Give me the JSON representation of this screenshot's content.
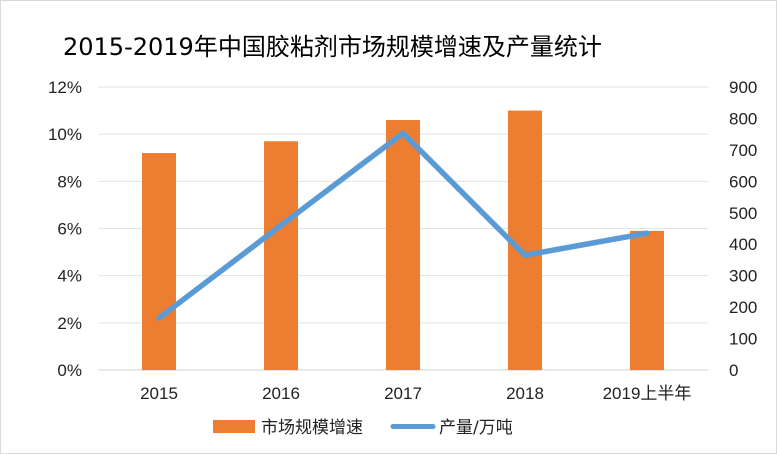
{
  "chart_data": {
    "type": "bar",
    "title": "2015-2019年中国胶粘剂市场规模增速及产量统计",
    "categories": [
      "2015",
      "2016",
      "2017",
      "2018",
      "2019上半年"
    ],
    "series": [
      {
        "name": "市场规模增速",
        "type": "bar",
        "axis": "left",
        "values": [
          9.2,
          9.7,
          10.6,
          11.0,
          5.9
        ],
        "unit": "%",
        "color": "#ED7D31"
      },
      {
        "name": "产量/万吨",
        "type": "line",
        "axis": "right",
        "values": [
          165,
          460,
          753,
          365,
          435
        ],
        "color": "#5B9BD5"
      }
    ],
    "y_left": {
      "min": 0,
      "max": 12,
      "step": 2,
      "suffix": "%",
      "ticks": [
        "0%",
        "2%",
        "4%",
        "6%",
        "8%",
        "10%",
        "12%"
      ]
    },
    "y_right": {
      "min": 0,
      "max": 900,
      "step": 100,
      "ticks": [
        "0",
        "100",
        "200",
        "300",
        "400",
        "500",
        "600",
        "700",
        "800",
        "900"
      ]
    },
    "grid": true,
    "legend": {
      "position": "bottom",
      "entries": [
        "市场规模增速",
        "产量/万吨"
      ]
    }
  }
}
